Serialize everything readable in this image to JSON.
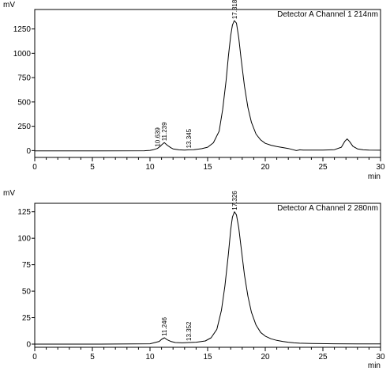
{
  "chart_data": [
    {
      "type": "line",
      "title": "Detector A Channel 1 214nm",
      "ylabel": "mV",
      "xlabel": "min",
      "xlim": [
        0,
        30
      ],
      "ylim": [
        -70,
        1450
      ],
      "xticks": [
        0,
        5,
        10,
        15,
        20,
        25,
        30
      ],
      "yticks": [
        0,
        250,
        500,
        750,
        1000,
        1250
      ],
      "grid": false,
      "peak_labels": [
        {
          "label": "10.639",
          "x": 10.64,
          "y": 22
        },
        {
          "label": "11.239",
          "x": 11.24,
          "y": 82
        },
        {
          "label": "13.345",
          "x": 13.35,
          "y": 8
        },
        {
          "label": "17.318",
          "x": 17.32,
          "y": 1335
        }
      ],
      "series": [
        {
          "color": "#000000",
          "x": [
            0,
            5,
            9.5,
            10.0,
            10.3,
            10.64,
            10.9,
            11.0,
            11.24,
            11.5,
            11.8,
            12.0,
            12.5,
            13.0,
            13.35,
            13.8,
            14.5,
            15.0,
            15.5,
            16.0,
            16.3,
            16.6,
            16.8,
            17.0,
            17.15,
            17.318,
            17.5,
            17.7,
            17.9,
            18.2,
            18.5,
            18.8,
            19.2,
            19.6,
            20.0,
            20.5,
            21.0,
            21.5,
            22.0,
            22.4,
            22.7,
            23.0,
            23.3,
            24.0,
            25.0,
            26.0,
            26.6,
            26.9,
            27.1,
            27.3,
            27.6,
            28.0,
            28.5,
            29.0,
            30.0
          ],
          "y": [
            -3,
            -3,
            -2,
            2,
            10,
            22,
            45,
            58,
            82,
            55,
            30,
            18,
            8,
            6,
            8,
            10,
            20,
            35,
            80,
            200,
            420,
            720,
            970,
            1180,
            1290,
            1335,
            1310,
            1160,
            950,
            660,
            440,
            290,
            170,
            110,
            75,
            55,
            42,
            32,
            22,
            10,
            0,
            8,
            5,
            6,
            6,
            10,
            35,
            95,
            120,
            95,
            45,
            18,
            8,
            5,
            4
          ]
        }
      ]
    },
    {
      "type": "line",
      "title": "Detector A Channel 2 280nm",
      "ylabel": "mV",
      "xlabel": "min",
      "xlim": [
        0,
        30
      ],
      "ylim": [
        -3,
        133
      ],
      "xticks": [
        0,
        5,
        10,
        15,
        20,
        25,
        30
      ],
      "yticks": [
        0,
        25,
        50,
        75,
        100,
        125
      ],
      "grid": false,
      "peak_labels": [
        {
          "label": "11.246",
          "x": 11.25,
          "y": 6
        },
        {
          "label": "13.352",
          "x": 13.35,
          "y": 1.5
        },
        {
          "label": "17.326",
          "x": 17.33,
          "y": 125
        }
      ],
      "series": [
        {
          "color": "#000000",
          "x": [
            0,
            5,
            10.0,
            10.8,
            11.0,
            11.25,
            11.5,
            11.8,
            12.2,
            12.8,
            13.35,
            14.0,
            14.8,
            15.3,
            15.8,
            16.2,
            16.5,
            16.8,
            17.0,
            17.15,
            17.326,
            17.5,
            17.7,
            17.9,
            18.2,
            18.5,
            18.8,
            19.2,
            19.6,
            20.0,
            20.5,
            21.0,
            21.5,
            22.0,
            22.5,
            23.0,
            24.0,
            26.0,
            28.0,
            30.0
          ],
          "y": [
            0,
            0,
            0.3,
            2.5,
            4.5,
            6.0,
            4.0,
            2.5,
            1.5,
            1.2,
            1.5,
            1.8,
            3,
            6,
            14,
            32,
            55,
            85,
            108,
            120,
            125,
            122,
            110,
            92,
            65,
            45,
            30,
            18,
            11,
            7.5,
            5,
            3.5,
            2.5,
            1.8,
            1.2,
            0.8,
            0.5,
            0.3,
            0.2,
            0.2
          ]
        }
      ]
    }
  ]
}
